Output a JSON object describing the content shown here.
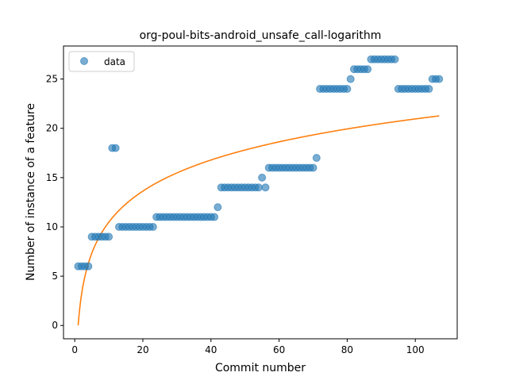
{
  "chart_data": {
    "type": "scatter",
    "title": "org-poul-bits-android_unsafe_call-logarithm",
    "xlabel": "Commit number",
    "ylabel": "Number of instance of a feature",
    "xlim": [
      -3.3,
      112.3
    ],
    "ylim": [
      -1.35,
      28.35
    ],
    "xticks": [
      0,
      20,
      40,
      60,
      80,
      100
    ],
    "yticks": [
      0,
      5,
      10,
      15,
      20,
      25
    ],
    "grid": false,
    "legend": {
      "placement": "upper-left",
      "entries": [
        "data"
      ]
    },
    "series": [
      {
        "name": "data",
        "kind": "scatter",
        "color": "#1f77b4",
        "x": [
          1,
          2,
          3,
          4,
          5,
          6,
          7,
          8,
          9,
          10,
          11,
          12,
          13,
          14,
          15,
          16,
          17,
          18,
          19,
          20,
          21,
          22,
          23,
          24,
          25,
          26,
          27,
          28,
          29,
          30,
          31,
          32,
          33,
          34,
          35,
          36,
          37,
          38,
          39,
          40,
          41,
          42,
          43,
          44,
          45,
          46,
          47,
          48,
          49,
          50,
          51,
          52,
          53,
          54,
          55,
          56,
          57,
          58,
          59,
          60,
          61,
          62,
          63,
          64,
          65,
          66,
          67,
          68,
          69,
          70,
          71,
          72,
          73,
          74,
          75,
          76,
          77,
          78,
          79,
          80,
          81,
          82,
          83,
          84,
          85,
          86,
          87,
          88,
          89,
          90,
          91,
          92,
          93,
          94,
          95,
          96,
          97,
          98,
          99,
          100,
          101,
          102,
          103,
          104,
          105,
          106,
          107
        ],
        "y": [
          6,
          6,
          6,
          6,
          9,
          9,
          9,
          9,
          9,
          9,
          18,
          18,
          10,
          10,
          10,
          10,
          10,
          10,
          10,
          10,
          10,
          10,
          10,
          11,
          11,
          11,
          11,
          11,
          11,
          11,
          11,
          11,
          11,
          11,
          11,
          11,
          11,
          11,
          11,
          11,
          11,
          12,
          14,
          14,
          14,
          14,
          14,
          14,
          14,
          14,
          14,
          14,
          14,
          14,
          15,
          14,
          16,
          16,
          16,
          16,
          16,
          16,
          16,
          16,
          16,
          16,
          16,
          16,
          16,
          16,
          17,
          24,
          24,
          24,
          24,
          24,
          24,
          24,
          24,
          24,
          25,
          26,
          26,
          26,
          26,
          26,
          27,
          27,
          27,
          27,
          27,
          27,
          27,
          27,
          24,
          24,
          24,
          24,
          24,
          24,
          24,
          24,
          24,
          24,
          25,
          25,
          25
        ]
      },
      {
        "name": "",
        "kind": "line",
        "color": "#ff7f0e",
        "model": "logarithmic",
        "coefficients": {
          "a": 0.0,
          "b": 4.55
        },
        "x_range": [
          1,
          107
        ]
      }
    ]
  }
}
